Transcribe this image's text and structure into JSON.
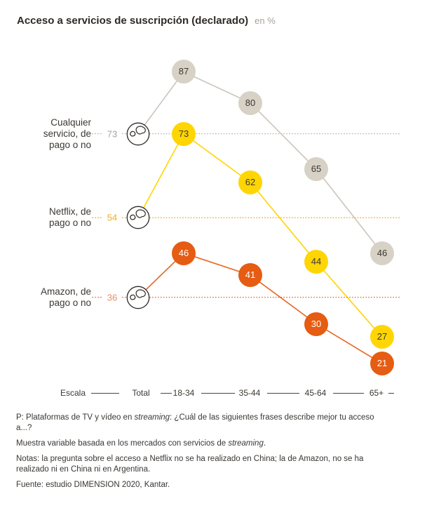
{
  "page": {
    "title": "Acceso a servicios de suscripción (declarado)",
    "unit_label": "en %"
  },
  "axis": {
    "scale_label": "Escala",
    "total_label": "Total",
    "groups": [
      "18-34",
      "35-44",
      "45-64",
      "65+"
    ]
  },
  "chart_data": {
    "type": "line",
    "title": "Acceso a servicios de suscripción (declarado)",
    "unit": "%",
    "categories": [
      "Total",
      "18-34",
      "35-44",
      "45-64",
      "65+"
    ],
    "series": [
      {
        "name": "Cualquier servicio, de pago o no",
        "label_lines": [
          "Cualquier",
          "servicio, de",
          "pago o no"
        ],
        "values": [
          73,
          87,
          80,
          65,
          46
        ],
        "bubble_color": "#d7d1c6",
        "line_color": "#cbc5bb",
        "bubble_text_color": "#3c3832",
        "total_value_color": "#a9a39a",
        "dotted_color": "#bcb6ad"
      },
      {
        "name": "Netflix, de pago o no",
        "label_lines": [
          "Netflix, de",
          "pago o no"
        ],
        "values": [
          54,
          73,
          62,
          44,
          27
        ],
        "bubble_color": "#ffd504",
        "line_color": "#ffd504",
        "bubble_text_color": "#3c3832",
        "total_value_color": "#f0ac1e",
        "dotted_color": "#f0a70d"
      },
      {
        "name": "Amazon, de pago o no",
        "label_lines": [
          "Amazon, de",
          "pago o no"
        ],
        "values": [
          36,
          46,
          41,
          30,
          21
        ],
        "bubble_color": "#e55c12",
        "line_color": "#e9641f",
        "bubble_text_color": "#ffffff",
        "total_value_color": "#ef8e5e",
        "dotted_color": "#ea6c2e"
      }
    ],
    "legend_position": "left",
    "grid": "dotted baseline per series at Total value",
    "ylim": [
      0,
      100
    ]
  },
  "footnotes": [
    [
      {
        "text": "P: Plataformas de TV y vídeo en "
      },
      {
        "text": "streaming",
        "italic": true
      },
      {
        "text": ": ¿Cuál de las siguientes frases describe mejor tu acceso a...?"
      }
    ],
    [
      {
        "text": "Muestra variable basada en los mercados con servicios de "
      },
      {
        "text": "streaming",
        "italic": true
      },
      {
        "text": "."
      }
    ],
    [
      {
        "text": "Notas: la pregunta sobre el acceso a Netflix no se ha realizado en China; la de Amazon, no se ha realizado ni en China ni en Argentina."
      }
    ],
    [
      {
        "text": "Fuente: estudio DIMENSION 2020, Kantar."
      }
    ]
  ]
}
